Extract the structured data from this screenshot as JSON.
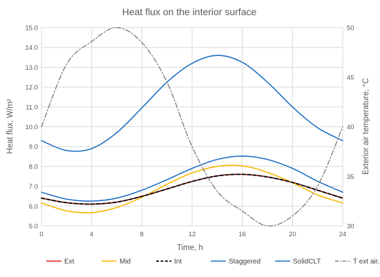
{
  "chart_data": {
    "type": "line",
    "title": "Heat flux on the interior surface",
    "xlabel": "Time, h",
    "ylabel": "Heat flux, W/m²",
    "y2label": "Exterior air temperature, °C",
    "xlim": [
      0,
      24
    ],
    "ylim": [
      5,
      15
    ],
    "y2lim": [
      30,
      50
    ],
    "xticks": [
      "0",
      "4",
      "8",
      "12",
      "16",
      "20",
      "24"
    ],
    "yticks": [
      "5.0",
      "6.0",
      "7.0",
      "8.0",
      "9.0",
      "10.0",
      "11.0",
      "12.0",
      "13.0",
      "14.0",
      "15.0"
    ],
    "y2ticks": [
      "30",
      "35",
      "40",
      "45",
      "50"
    ],
    "grid": true,
    "legend_position": "bottom",
    "x": [
      0,
      2,
      4,
      6,
      8,
      10,
      12,
      14,
      16,
      18,
      20,
      22,
      24
    ],
    "series": [
      {
        "name": "Ext",
        "axis": "left",
        "color": "#e21e1e",
        "dash": "solid",
        "values": [
          6.4,
          6.17,
          6.1,
          6.2,
          6.49,
          6.86,
          7.24,
          7.52,
          7.6,
          7.47,
          7.19,
          6.8,
          6.4
        ]
      },
      {
        "name": "Mid",
        "axis": "left",
        "color": "#f5b800",
        "dash": "solid",
        "values": [
          6.16,
          5.76,
          5.67,
          5.93,
          6.44,
          7.1,
          7.67,
          8.0,
          8.03,
          7.7,
          7.18,
          6.56,
          6.16
        ]
      },
      {
        "name": "Int",
        "axis": "left",
        "color": "#000000",
        "dash": "dashed",
        "values": [
          6.4,
          6.17,
          6.1,
          6.2,
          6.49,
          6.86,
          7.24,
          7.52,
          7.6,
          7.47,
          7.19,
          6.8,
          6.4
        ]
      },
      {
        "name": "Staggered",
        "axis": "left",
        "color": "#1f6fc4",
        "dash": "solid",
        "values": [
          6.7,
          6.35,
          6.25,
          6.4,
          6.8,
          7.33,
          7.9,
          8.35,
          8.52,
          8.35,
          7.9,
          7.25,
          6.7
        ]
      },
      {
        "name": "SolidCLT",
        "axis": "left",
        "color": "#1f6fc4",
        "dash": "solid",
        "values": [
          9.3,
          8.8,
          8.9,
          9.7,
          10.95,
          12.25,
          13.2,
          13.6,
          13.25,
          12.25,
          11.0,
          9.95,
          9.3
        ]
      },
      {
        "name": "T ext air, C",
        "axis": "right",
        "color": "#7f7f7f",
        "dash": "dashdot",
        "values": [
          40.0,
          46.3,
          48.6,
          50.0,
          48.5,
          44.5,
          38.0,
          33.5,
          31.5,
          30.0,
          31.0,
          34.0,
          40.0
        ]
      }
    ]
  }
}
